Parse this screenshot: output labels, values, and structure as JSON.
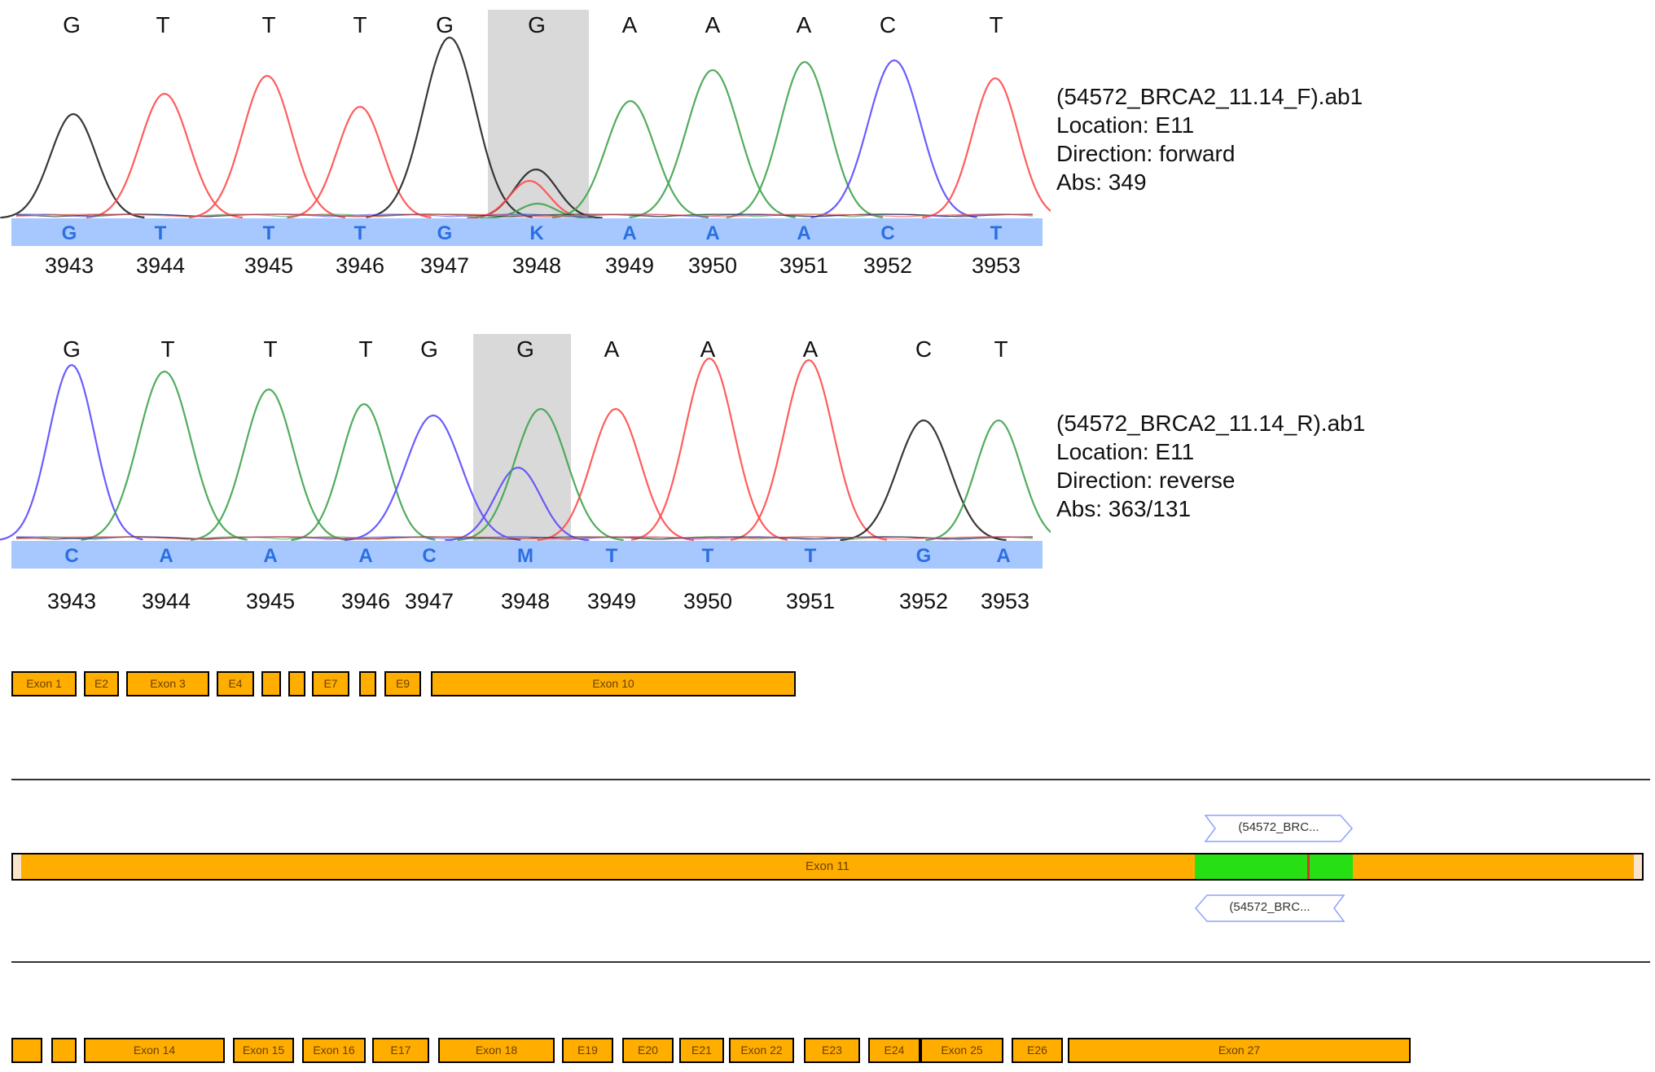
{
  "colors": {
    "A": "#3fa34d",
    "C": "#5a4bff",
    "G": "#222222",
    "T": "#ff4b4b",
    "basebar": "#a7c8ff",
    "highlight": "#d9d9d9",
    "exon": "#ffae00",
    "amplicon": "#27e014",
    "mutation": "#d8342a"
  },
  "forward": {
    "ref_bases": [
      "G",
      "T",
      "T",
      "T",
      "G",
      "G",
      "A",
      "A",
      "A",
      "C",
      "T"
    ],
    "called_bases": [
      "G",
      "T",
      "T",
      "T",
      "G",
      "K",
      "A",
      "A",
      "A",
      "C",
      "T"
    ],
    "positions": [
      "3943",
      "3944",
      "3945",
      "3946",
      "3947",
      "3948",
      "3949",
      "3950",
      "3951",
      "3952",
      "3953"
    ],
    "highlight_index": 5,
    "info": {
      "file": "(54572_BRCA2_11.14_F).ab1",
      "location": "Location: E11",
      "direction": "Direction: forward",
      "abs": "Abs: 349"
    }
  },
  "reverse": {
    "ref_bases": [
      "G",
      "T",
      "T",
      "T",
      "G",
      "G",
      "A",
      "A",
      "A",
      "C",
      "T"
    ],
    "called_bases": [
      "C",
      "A",
      "A",
      "A",
      "C",
      "M",
      "T",
      "T",
      "T",
      "G",
      "A"
    ],
    "positions": [
      "3943",
      "3944",
      "3945",
      "3946",
      "3947",
      "3948",
      "3949",
      "3950",
      "3951",
      "3952",
      "3953"
    ],
    "highlight_index": 5,
    "info": {
      "file": "(54572_BRCA2_11.14_R).ab1",
      "location": "Location: E11",
      "direction": "Direction: reverse",
      "abs": "Abs: 363/131"
    }
  },
  "exons_top": [
    "Exon 1",
    "E2",
    "Exon 3",
    "E4",
    "",
    "",
    "E7",
    "",
    "E9",
    "Exon 10"
  ],
  "exon11": {
    "label": "Exon 11",
    "read_forward": "(54572_BRC...",
    "read_reverse": "(54572_BRC..."
  },
  "exons_bottom": [
    "",
    "",
    "Exon 14",
    "Exon 15",
    "Exon 16",
    "E17",
    "Exon 18",
    "E19",
    "E20",
    "E21",
    "Exon 22",
    "E23",
    "E24",
    "Exon 25",
    "E26",
    "Exon 27"
  ]
}
